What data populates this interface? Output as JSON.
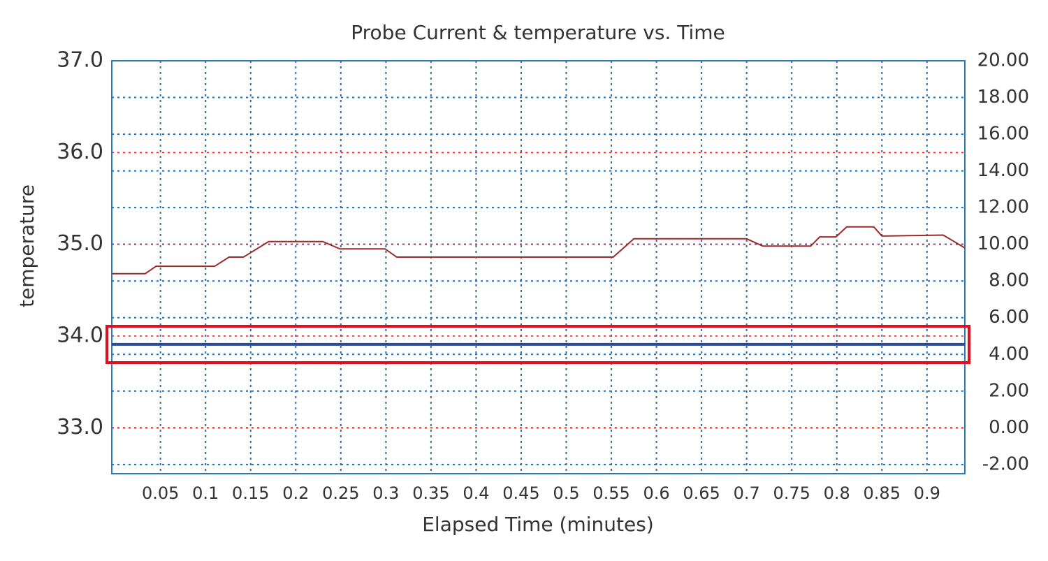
{
  "chart_data": {
    "type": "line",
    "title": "Probe Current & temperature vs. Time",
    "x_label": "Elapsed Time (minutes)",
    "y_label": "temperature",
    "xlim": [
      -0.004,
      0.942
    ],
    "xticks": [
      0.05,
      0.1,
      0.15,
      0.2,
      0.25,
      0.3,
      0.35,
      0.4,
      0.45,
      0.5,
      0.55,
      0.6,
      0.65,
      0.7,
      0.75,
      0.8,
      0.85,
      0.9
    ],
    "ylim": [
      32.5,
      37.0
    ],
    "yticks": [
      {
        "value": 33,
        "label": "33.0"
      },
      {
        "value": 34,
        "label": "34.0"
      },
      {
        "value": 35,
        "label": "35.0"
      },
      {
        "value": 36,
        "label": "36.0"
      },
      {
        "value": 37,
        "label": "37.0"
      }
    ],
    "y2lim": [
      -2.5,
      20
    ],
    "y2ticks": [
      {
        "value": -2,
        "label": "-2.00"
      },
      {
        "value": 0,
        "label": "0.00"
      },
      {
        "value": 2,
        "label": "2.00"
      },
      {
        "value": 4,
        "label": "4.00"
      },
      {
        "value": 6,
        "label": "6.00"
      },
      {
        "value": 8,
        "label": "8.00"
      },
      {
        "value": 10,
        "label": "10.00"
      },
      {
        "value": 12,
        "label": "12.00"
      },
      {
        "value": 14,
        "label": "14.00"
      },
      {
        "value": 16,
        "label": "16.00"
      },
      {
        "value": 18,
        "label": "18.00"
      },
      {
        "value": 20,
        "label": "20.00"
      }
    ],
    "grid": true,
    "grid_color": "#1f6fb5",
    "y_grid_color": "#e02020",
    "axis_color": "#2a7ab8",
    "series": [
      {
        "color": "#9b2a2a",
        "x": [
          -0.004,
          0.033,
          0.045,
          0.11,
          0.126,
          0.142,
          0.17,
          0.23,
          0.249,
          0.299,
          0.312,
          0.552,
          0.575,
          0.7,
          0.718,
          0.771,
          0.781,
          0.799,
          0.811,
          0.841,
          0.85,
          0.918,
          0.942
        ],
        "values": [
          34.68,
          34.68,
          34.76,
          34.76,
          34.86,
          34.86,
          35.03,
          35.03,
          34.95,
          34.95,
          34.86,
          34.86,
          35.06,
          35.06,
          34.98,
          34.98,
          35.08,
          35.08,
          35.19,
          35.19,
          35.09,
          35.1,
          34.96
        ]
      },
      {
        "color": "#2b4a9a",
        "axis": "y2",
        "x": [
          -0.004,
          0.942
        ],
        "values": [
          4.55,
          4.55
        ]
      }
    ]
  }
}
